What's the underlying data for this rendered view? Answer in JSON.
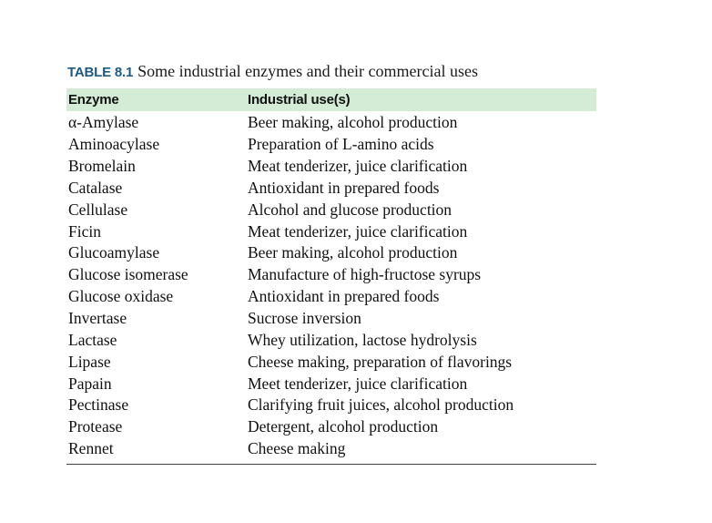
{
  "table": {
    "label": "TABLE 8.1",
    "caption": "Some industrial enzymes and their commercial uses",
    "headers": [
      "Enzyme",
      "Industrial use(s)"
    ],
    "rows": [
      {
        "enzyme": "α-Amylase",
        "use": "Beer making, alcohol production"
      },
      {
        "enzyme": "Aminoacylase",
        "use": "Preparation of L-amino acids"
      },
      {
        "enzyme": "Bromelain",
        "use": "Meat tenderizer, juice clarification"
      },
      {
        "enzyme": "Catalase",
        "use": "Antioxidant in prepared foods"
      },
      {
        "enzyme": "Cellulase",
        "use": "Alcohol and glucose production"
      },
      {
        "enzyme": "Ficin",
        "use": "Meat tenderizer, juice clarification"
      },
      {
        "enzyme": "Glucoamylase",
        "use": "Beer making, alcohol production"
      },
      {
        "enzyme": "Glucose isomerase",
        "use": "Manufacture of high-fructose syrups"
      },
      {
        "enzyme": "Glucose oxidase",
        "use": "Antioxidant in prepared foods"
      },
      {
        "enzyme": "Invertase",
        "use": "Sucrose inversion"
      },
      {
        "enzyme": "Lactase",
        "use": "Whey utilization, lactose hydrolysis"
      },
      {
        "enzyme": "Lipase",
        "use": "Cheese making, preparation of flavorings"
      },
      {
        "enzyme": "Papain",
        "use": "Meet tenderizer, juice clarification"
      },
      {
        "enzyme": "Pectinase",
        "use": "Clarifying fruit juices, alcohol production"
      },
      {
        "enzyme": "Protease",
        "use": "Detergent, alcohol production"
      },
      {
        "enzyme": "Rennet",
        "use": "Cheese making"
      }
    ]
  },
  "colors": {
    "label": "#1d5a84",
    "header_band": "#d4ecd6",
    "text": "#111111"
  }
}
